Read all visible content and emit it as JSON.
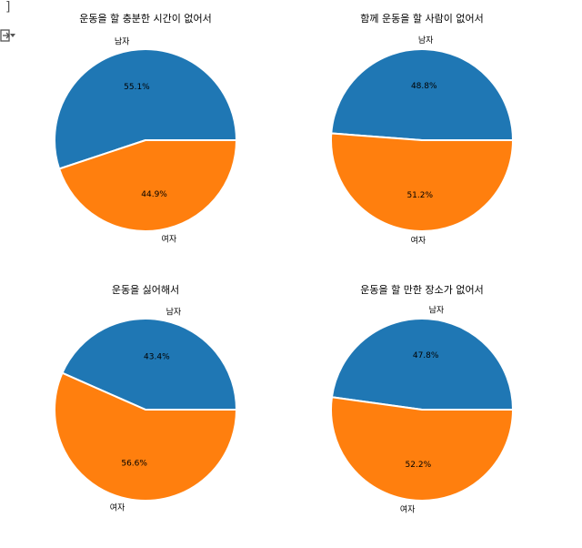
{
  "gutter": {
    "bracket": "]",
    "output_icon": "output-toggle-icon"
  },
  "colors": {
    "male": "#1f77b4",
    "female": "#ff7f0e"
  },
  "chart_data": [
    {
      "type": "pie",
      "title": "운동을 할 충분한 시간이 없어서",
      "labels": [
        "남자",
        "여자"
      ],
      "values": [
        55.1,
        44.9
      ],
      "autopct": [
        "55.1%",
        "44.9%"
      ]
    },
    {
      "type": "pie",
      "title": "함께 운동을 할 사람이 없어서",
      "labels": [
        "남자",
        "여자"
      ],
      "values": [
        48.8,
        51.2
      ],
      "autopct": [
        "48.8%",
        "51.2%"
      ]
    },
    {
      "type": "pie",
      "title": "운동을 싫어해서",
      "labels": [
        "남자",
        "여자"
      ],
      "values": [
        43.4,
        56.6
      ],
      "autopct": [
        "43.4%",
        "56.6%"
      ]
    },
    {
      "type": "pie",
      "title": "운동을 할 만한 장소가 없어서",
      "labels": [
        "남자",
        "여자"
      ],
      "values": [
        47.8,
        52.2
      ],
      "autopct": [
        "47.8%",
        "52.2%"
      ]
    }
  ]
}
